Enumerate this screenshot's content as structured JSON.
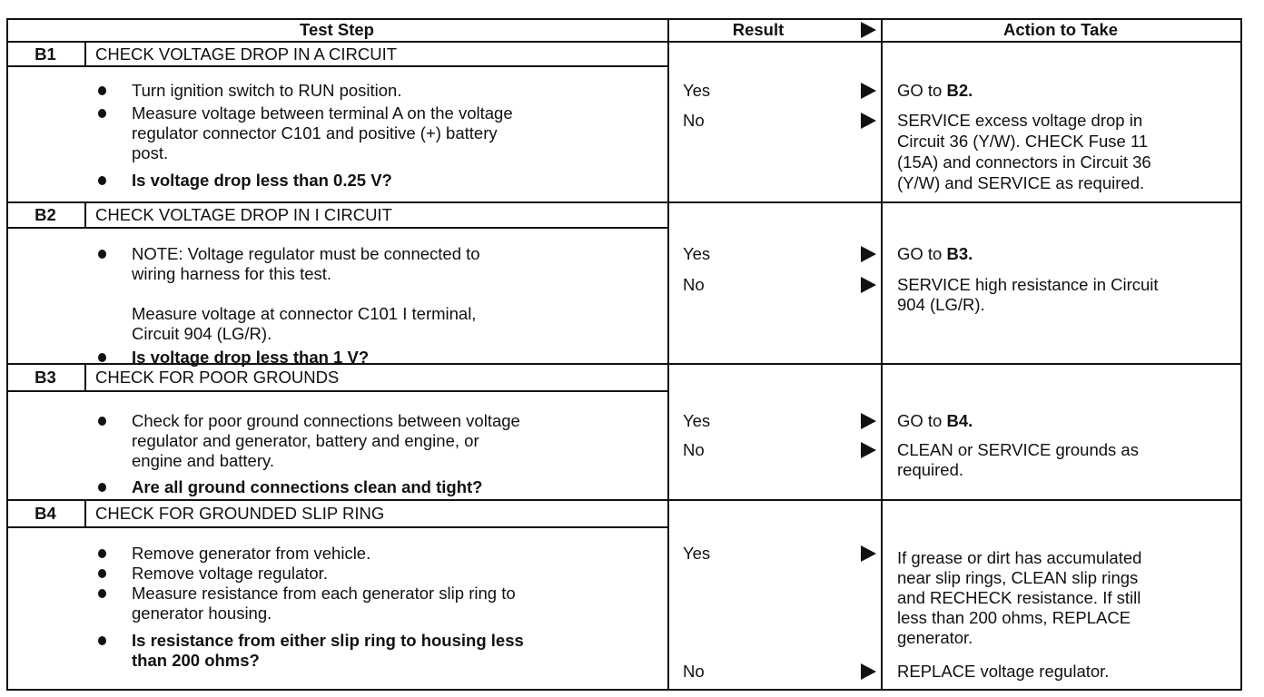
{
  "header": {
    "test_step": "Test Step",
    "result": "Result",
    "action": "Action to Take"
  },
  "steps": [
    {
      "id": "B1",
      "title": "CHECK VOLTAGE DROP IN A CIRCUIT",
      "items": [
        {
          "bullet": true,
          "bold": false,
          "lines": [
            "Turn ignition switch to RUN position."
          ]
        },
        {
          "bullet": true,
          "bold": false,
          "lines": [
            "Measure voltage between terminal A on the voltage",
            "regulator connector C101 and positive (+) battery",
            "post."
          ]
        },
        {
          "bullet": true,
          "bold": true,
          "lines": [
            "Is voltage drop less than 0.25 V?"
          ]
        }
      ],
      "results": [
        {
          "label": "Yes",
          "action": [
            {
              "text": "GO to ",
              "ref": "B2",
              "after": "."
            }
          ]
        },
        {
          "label": "No",
          "action": [
            {
              "text": "SERVICE excess voltage drop in"
            },
            {
              "text": "Circuit 36 (Y/W). CHECK Fuse 11"
            },
            {
              "text": "(15A) and connectors in Circuit 36"
            },
            {
              "text": "(Y/W) and SERVICE as required."
            }
          ]
        }
      ]
    },
    {
      "id": "B2",
      "title": "CHECK VOLTAGE DROP IN I CIRCUIT",
      "items": [
        {
          "bullet": true,
          "bold": false,
          "lines": [
            "NOTE: Voltage regulator must be connected to",
            "wiring harness for this test."
          ]
        },
        {
          "bullet": false,
          "bold": false,
          "lines": [
            "Measure voltage at connector C101 I terminal,",
            "Circuit 904 (LG/R)."
          ]
        },
        {
          "bullet": true,
          "bold": true,
          "lines": [
            "Is voltage drop less than 1 V?"
          ]
        }
      ],
      "results": [
        {
          "label": "Yes",
          "action": [
            {
              "text": "GO to ",
              "ref": "B3",
              "after": "."
            }
          ]
        },
        {
          "label": "No",
          "action": [
            {
              "text": "SERVICE high resistance in Circuit"
            },
            {
              "text": "904 (LG/R)."
            }
          ]
        }
      ]
    },
    {
      "id": "B3",
      "title": "CHECK FOR POOR GROUNDS",
      "items": [
        {
          "bullet": true,
          "bold": false,
          "lines": [
            "Check for poor ground connections between voltage",
            "regulator and generator, battery and engine, or",
            "engine and battery."
          ]
        },
        {
          "bullet": true,
          "bold": true,
          "lines": [
            "Are all ground connections clean and tight?"
          ]
        }
      ],
      "results": [
        {
          "label": "Yes",
          "action": [
            {
              "text": "GO to ",
              "ref": "B4",
              "after": "."
            }
          ]
        },
        {
          "label": "No",
          "action": [
            {
              "text": "CLEAN or SERVICE grounds as"
            },
            {
              "text": "required."
            }
          ]
        }
      ]
    },
    {
      "id": "B4",
      "title": "CHECK FOR GROUNDED SLIP RING",
      "items": [
        {
          "bullet": true,
          "bold": false,
          "lines": [
            "Remove generator from vehicle."
          ]
        },
        {
          "bullet": true,
          "bold": false,
          "lines": [
            "Remove voltage regulator."
          ]
        },
        {
          "bullet": true,
          "bold": false,
          "lines": [
            "Measure resistance from each generator slip ring to",
            "generator housing."
          ]
        },
        {
          "bullet": true,
          "bold": true,
          "lines": [
            "Is resistance from either slip ring to housing less",
            "than 200 ohms?"
          ]
        }
      ],
      "results": [
        {
          "label": "Yes",
          "action": [
            {
              "text": "If grease or dirt has accumulated"
            },
            {
              "text": "near slip rings, CLEAN slip rings"
            },
            {
              "text": "and RECHECK resistance. If still"
            },
            {
              "text": "less than 200 ohms, REPLACE"
            },
            {
              "text": "generator."
            }
          ]
        },
        {
          "label": "No",
          "action": [
            {
              "text": "REPLACE voltage regulator."
            }
          ]
        }
      ]
    }
  ]
}
